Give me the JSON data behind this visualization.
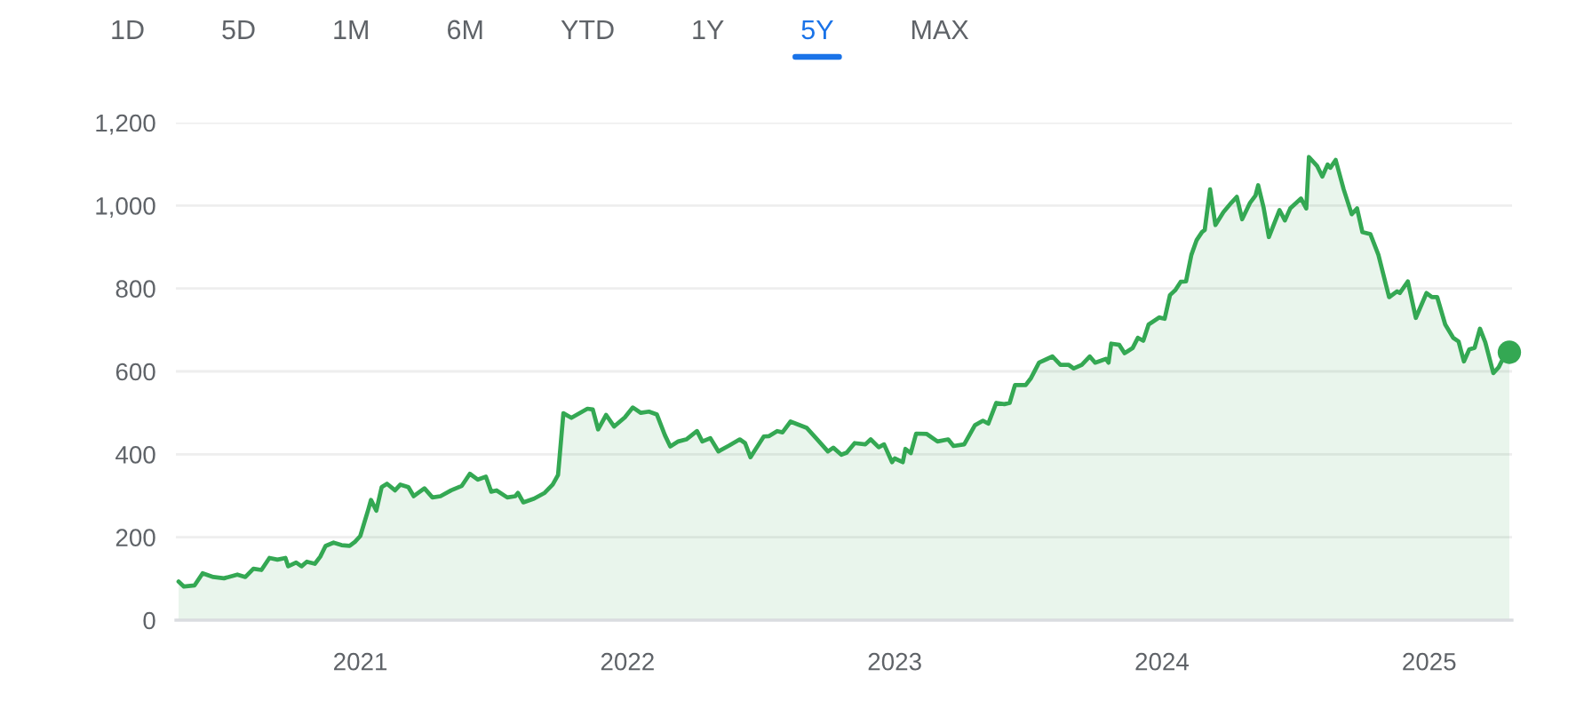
{
  "chart_data": {
    "type": "area",
    "annotations": [
      "1D",
      "5D",
      "1M",
      "6M",
      "YTD",
      "1Y",
      "5Y",
      "MAX"
    ],
    "x": [
      2020.32,
      2020.34,
      2020.38,
      2020.41,
      2020.45,
      2020.49,
      2020.54,
      2020.57,
      2020.6,
      2020.63,
      2020.66,
      2020.69,
      2020.72,
      2020.73,
      2020.76,
      2020.78,
      2020.8,
      2020.83,
      2020.85,
      2020.87,
      2020.9,
      2020.93,
      2020.96,
      2020.98,
      2021.0,
      2021.03,
      2021.04,
      2021.06,
      2021.08,
      2021.1,
      2021.13,
      2021.15,
      2021.18,
      2021.2,
      2021.24,
      2021.27,
      2021.3,
      2021.34,
      2021.38,
      2021.41,
      2021.44,
      2021.47,
      2021.49,
      2021.51,
      2021.55,
      2021.58,
      2021.59,
      2021.61,
      2021.65,
      2021.69,
      2021.72,
      2021.74,
      2021.76,
      2021.79,
      2021.85,
      2021.87,
      2021.89,
      2021.92,
      2021.95,
      2021.99,
      2022.02,
      2022.05,
      2022.08,
      2022.11,
      2022.14,
      2022.16,
      2022.19,
      2022.22,
      2022.26,
      2022.28,
      2022.31,
      2022.34,
      2022.38,
      2022.42,
      2022.44,
      2022.46,
      2022.48,
      2022.51,
      2022.53,
      2022.56,
      2022.58,
      2022.61,
      2022.67,
      2022.71,
      2022.75,
      2022.77,
      2022.8,
      2022.82,
      2022.85,
      2022.89,
      2022.91,
      2022.94,
      2022.96,
      2022.99,
      2023.0,
      2023.03,
      2023.04,
      2023.06,
      2023.08,
      2023.12,
      2023.16,
      2023.2,
      2023.22,
      2023.26,
      2023.3,
      2023.33,
      2023.35,
      2023.38,
      2023.41,
      2023.43,
      2023.45,
      2023.49,
      2023.51,
      2023.54,
      2023.57,
      2023.59,
      2023.62,
      2023.65,
      2023.67,
      2023.7,
      2023.73,
      2023.75,
      2023.79,
      2023.8,
      2023.81,
      2023.84,
      2023.86,
      2023.89,
      2023.91,
      2023.93,
      2023.95,
      2023.99,
      2024.01,
      2024.03,
      2024.05,
      2024.07,
      2024.09,
      2024.11,
      2024.13,
      2024.15,
      2024.16,
      2024.18,
      2024.2,
      2024.23,
      2024.26,
      2024.28,
      2024.3,
      2024.33,
      2024.35,
      2024.36,
      2024.38,
      2024.4,
      2024.44,
      2024.46,
      2024.48,
      2024.52,
      2024.54,
      2024.55,
      2024.58,
      2024.6,
      2024.62,
      2024.63,
      2024.65,
      2024.68,
      2024.71,
      2024.73,
      2024.75,
      2024.78,
      2024.81,
      2024.85,
      2024.88,
      2024.89,
      2024.92,
      2024.95,
      2024.99,
      2025.01,
      2025.03,
      2025.06,
      2025.09,
      2025.11,
      2025.13,
      2025.15,
      2025.17,
      2025.19,
      2025.21,
      2025.24,
      2025.26,
      2025.28,
      2025.3
    ],
    "series": [
      {
        "color": "#34a853",
        "values": [
          93,
          81,
          84,
          113,
          104,
          101,
          110,
          104,
          124,
          121,
          150,
          146,
          150,
          130,
          139,
          130,
          141,
          136,
          153,
          179,
          187,
          181,
          179,
          189,
          203,
          267,
          290,
          264,
          321,
          329,
          313,
          327,
          321,
          299,
          318,
          296,
          299,
          313,
          324,
          353,
          339,
          346,
          310,
          313,
          296,
          299,
          307,
          284,
          293,
          307,
          327,
          350,
          499,
          488,
          510,
          508,
          460,
          495,
          467,
          489,
          513,
          500,
          503,
          496,
          446,
          419,
          431,
          436,
          456,
          431,
          439,
          407,
          421,
          436,
          427,
          393,
          413,
          443,
          444,
          456,
          453,
          479,
          464,
          436,
          407,
          416,
          399,
          404,
          427,
          424,
          436,
          417,
          424,
          381,
          390,
          381,
          413,
          403,
          450,
          449,
          431,
          436,
          420,
          424,
          470,
          481,
          474,
          524,
          521,
          524,
          567,
          567,
          584,
          621,
          630,
          636,
          616,
          616,
          607,
          616,
          636,
          621,
          630,
          621,
          667,
          664,
          644,
          656,
          681,
          674,
          713,
          730,
          727,
          784,
          796,
          816,
          817,
          881,
          917,
          936,
          941,
          1039,
          953,
          984,
          1007,
          1021,
          967,
          1007,
          1024,
          1049,
          996,
          924,
          989,
          964,
          993,
          1017,
          993,
          1117,
          1096,
          1070,
          1099,
          1091,
          1110,
          1039,
          979,
          993,
          936,
          931,
          881,
          779,
          793,
          789,
          817,
          729,
          789,
          779,
          779,
          713,
          681,
          672,
          624,
          653,
          657,
          703,
          670,
          596,
          610,
          636,
          646
        ]
      },
      {
        "type": "scatter",
        "color": "#34a853",
        "x": [
          2025.3
        ],
        "values": [
          646
        ]
      }
    ],
    "xlim": [
      2020.31,
      2025.31
    ],
    "xticks": [
      2021,
      2022,
      2023,
      2024,
      2025
    ],
    "ylim": [
      0,
      1200
    ],
    "yticks": [
      0,
      200,
      400,
      600,
      800,
      {
        "value": 1000,
        "label": "1,000"
      },
      {
        "value": 1200,
        "label": "1,200"
      }
    ],
    "grid": "y"
  }
}
